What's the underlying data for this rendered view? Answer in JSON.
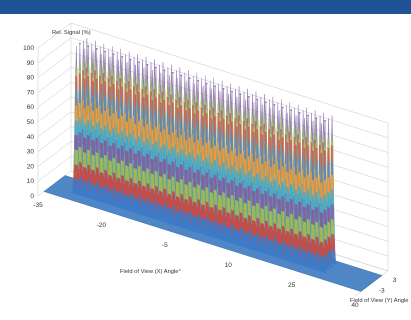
{
  "header_bar_color": "#1f5396",
  "chart_data": {
    "type": "area",
    "subtype": "3d-surface",
    "zlabel": "Rel. Signal  (%)",
    "xlabel": "Field of View (X) Angle°",
    "ylabel": "Field of View (Y) Angle",
    "z_ticks": [
      "0",
      "10",
      "20",
      "30",
      "40",
      "50",
      "60",
      "70",
      "80",
      "90",
      "100"
    ],
    "x_ticks": [
      "-35",
      "-20",
      "-5",
      "10",
      "25",
      "40"
    ],
    "y_ticks": [
      "3",
      "-3"
    ],
    "zlim": [
      0,
      100
    ],
    "xlim": [
      -35,
      40
    ],
    "grid": true,
    "peaks_x": [
      -29,
      -27,
      -25,
      -23,
      -21,
      -19,
      -17,
      -15,
      -13,
      -11,
      -9,
      -7,
      -5,
      -3,
      -1,
      1,
      3,
      5,
      7,
      9,
      11,
      13,
      15,
      17,
      19,
      21,
      23,
      25,
      27,
      29
    ],
    "peak_value": 100,
    "band_step": 10,
    "band_colors": [
      "#3d7cc9",
      "#c0504d",
      "#9bbb59",
      "#7f64a2",
      "#4bacc6",
      "#f39a3a",
      "#5b86c2",
      "#c7625e",
      "#a2c163",
      "#8e76b0"
    ]
  }
}
